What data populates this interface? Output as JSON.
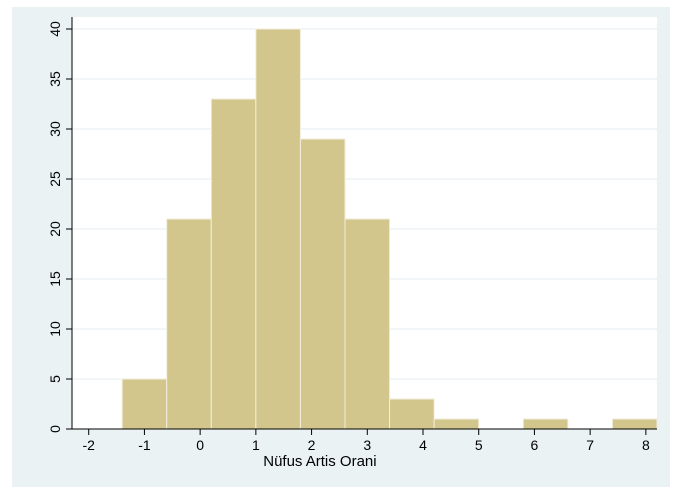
{
  "chart_data": {
    "type": "bar",
    "title": "",
    "xlabel": "Nüfus Artis Orani",
    "ylabel": "",
    "xlim": [
      -2.3,
      8.2
    ],
    "ylim": [
      0,
      40
    ],
    "x_ticks": [
      -2,
      -1,
      0,
      1,
      2,
      3,
      4,
      5,
      6,
      7,
      8
    ],
    "y_ticks": [
      0,
      5,
      10,
      15,
      20,
      25,
      30,
      35,
      40
    ],
    "bin_width": 0.8,
    "bins": [
      {
        "start": -1.4,
        "end": -0.6,
        "value": 5
      },
      {
        "start": -0.6,
        "end": 0.2,
        "value": 21
      },
      {
        "start": 0.2,
        "end": 1.0,
        "value": 33
      },
      {
        "start": 1.0,
        "end": 1.8,
        "value": 40
      },
      {
        "start": 1.8,
        "end": 2.6,
        "value": 29
      },
      {
        "start": 2.6,
        "end": 3.4,
        "value": 21
      },
      {
        "start": 3.4,
        "end": 4.2,
        "value": 3
      },
      {
        "start": 4.2,
        "end": 5.0,
        "value": 1
      },
      {
        "start": 5.0,
        "end": 5.8,
        "value": 0
      },
      {
        "start": 5.8,
        "end": 6.6,
        "value": 1
      },
      {
        "start": 6.6,
        "end": 7.4,
        "value": 0
      },
      {
        "start": 7.4,
        "end": 8.2,
        "value": 1
      }
    ],
    "grid": "horizontal",
    "legend": "none",
    "colors": {
      "bar_fill": "#d2c68c",
      "bar_edge": "#f2eedc",
      "plot_bg": "#ffffff",
      "figure_bg": "#eaf2f3",
      "grid": "#e6eef0",
      "axis": "#000000"
    }
  }
}
